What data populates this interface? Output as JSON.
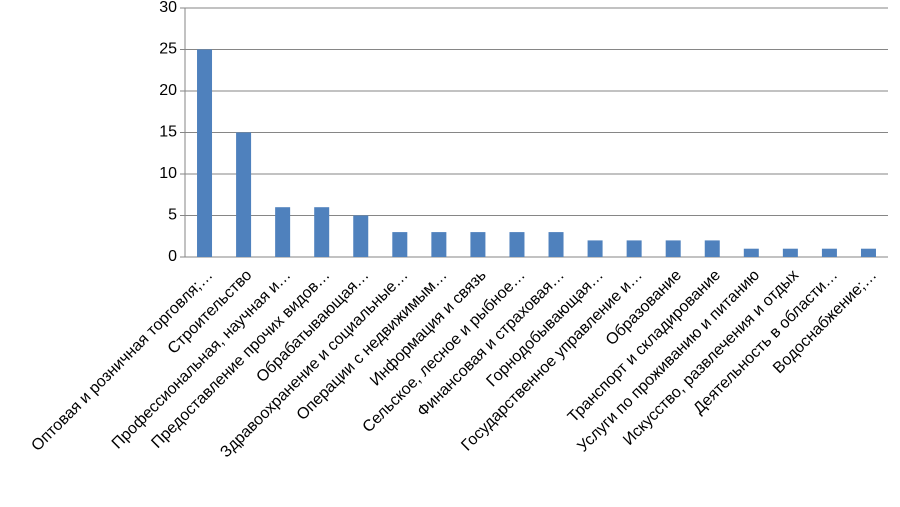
{
  "chart_data": {
    "type": "bar",
    "categories": [
      "Оптовая и розничная торговля;…",
      "Строительство",
      "Профессиональная, научная и…",
      "Предоставление прочих видов…",
      "Обрабатывающая…",
      "Здравоохранение и социальные…",
      "Операции с недвижимым…",
      "Информация и связь",
      "Сельское, лесное и рыбное…",
      "Финансовая и страховая…",
      "Горнодобывающая…",
      "Государственное управление и…",
      "Образование",
      "Транспорт и складирование",
      "Услуги по проживанию и питанию",
      "Искусство, развлечения и отдых",
      "Деятельность в области…",
      "Водоснабжение;…"
    ],
    "values": [
      25,
      15,
      6,
      6,
      5,
      3,
      3,
      3,
      3,
      3,
      2,
      2,
      2,
      2,
      1,
      1,
      1,
      1
    ],
    "color": "#4f81bd",
    "ylim": [
      0,
      30
    ],
    "yticks": [
      0,
      5,
      10,
      15,
      20,
      25,
      30
    ],
    "grid": true
  }
}
